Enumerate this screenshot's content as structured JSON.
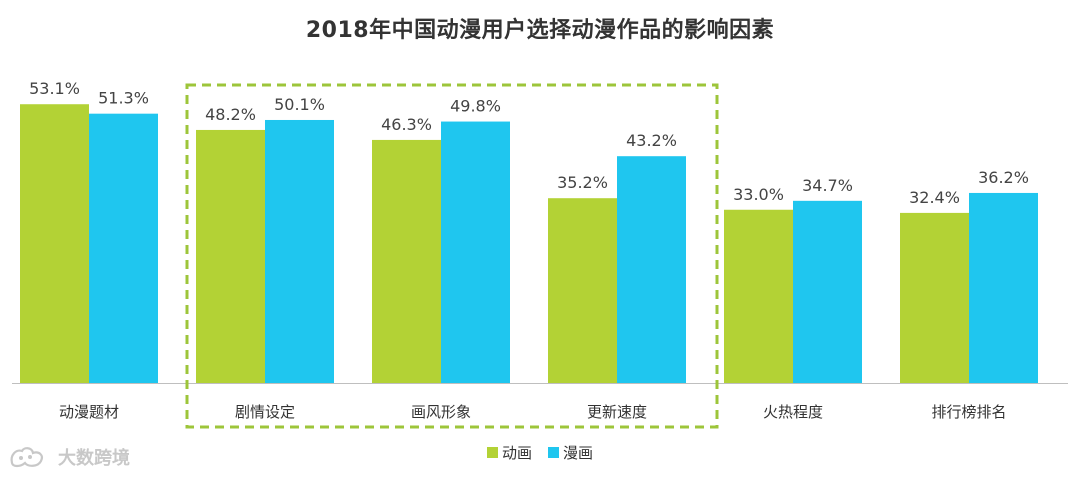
{
  "chart_data": {
    "type": "bar",
    "title": "2018年中国动漫用户选择动漫作品的影响因素",
    "categories": [
      "动漫题材",
      "剧情设定",
      "画风形象",
      "更新速度",
      "火热程度",
      "排行榜排名"
    ],
    "series": [
      {
        "name": "动画",
        "values": [
          53.1,
          48.2,
          46.3,
          35.2,
          33.0,
          32.4
        ],
        "color": "#b3d235"
      },
      {
        "name": "漫画",
        "values": [
          51.3,
          50.1,
          49.8,
          43.2,
          34.7,
          36.2
        ],
        "color": "#1fc6ef"
      }
    ],
    "value_suffix": "%",
    "ylim": [
      0,
      100
    ],
    "highlighted_categories": [
      "剧情设定",
      "画风形象",
      "更新速度"
    ],
    "highlight_color": "#9dc53a",
    "legend_position": "bottom-center",
    "xlabel": "",
    "ylabel": ""
  },
  "watermark": {
    "text": "大数跨境"
  }
}
